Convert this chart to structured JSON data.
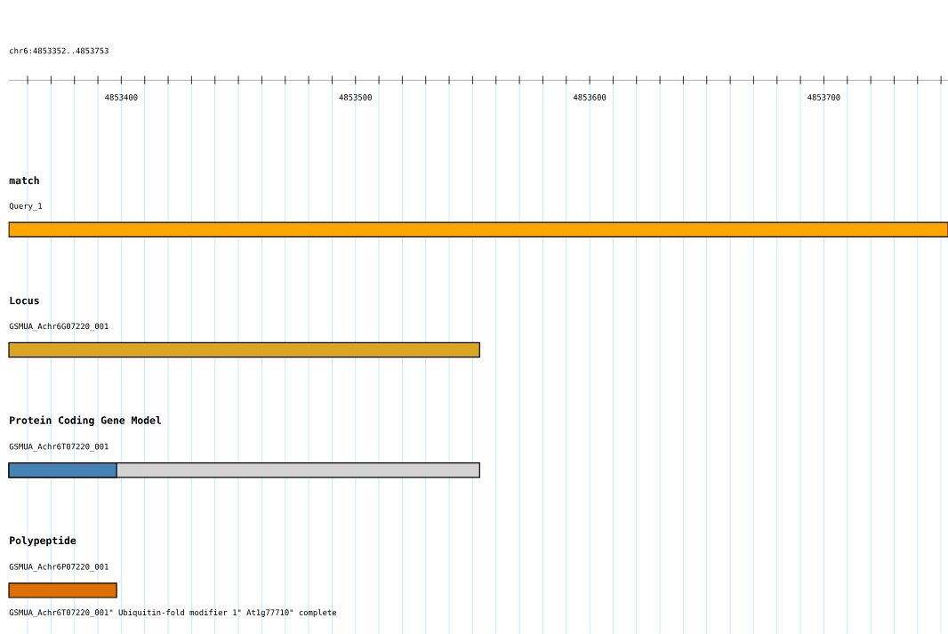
{
  "chart_data": {
    "type": "bar",
    "orientation": "horizontal",
    "title": "chr6:4853352..4853753",
    "categories": [
      "match",
      "Locus",
      "Protein Coding Gene Model",
      "Polypeptide"
    ],
    "series": [
      {
        "color": "#d3d3d3",
        "values": [
          null,
          null,
          4853553,
          null
        ]
      },
      {
        "colors": [
          "#ffa500",
          "#daa520",
          "#4682b4",
          "#dd7000"
        ],
        "values": [
          4853753,
          4853553,
          4853398,
          4853398
        ]
      }
    ],
    "xlim": [
      4853352,
      4853753
    ],
    "xticks": [
      {
        "value": 4853360,
        "label": null
      },
      {
        "value": 4853370,
        "label": null
      },
      {
        "value": 4853380,
        "label": null
      },
      {
        "value": 4853390,
        "label": null
      },
      4853400,
      {
        "value": 4853410,
        "label": null
      },
      {
        "value": 4853420,
        "label": null
      },
      {
        "value": 4853430,
        "label": null
      },
      {
        "value": 4853440,
        "label": null
      },
      {
        "value": 4853450,
        "label": null
      },
      {
        "value": 4853460,
        "label": null
      },
      {
        "value": 4853470,
        "label": null
      },
      {
        "value": 4853480,
        "label": null
      },
      {
        "value": 4853490,
        "label": null
      },
      4853500,
      {
        "value": 4853510,
        "label": null
      },
      {
        "value": 4853520,
        "label": null
      },
      {
        "value": 4853530,
        "label": null
      },
      {
        "value": 4853540,
        "label": null
      },
      {
        "value": 4853550,
        "label": null
      },
      {
        "value": 4853560,
        "label": null
      },
      {
        "value": 4853570,
        "label": null
      },
      {
        "value": 4853580,
        "label": null
      },
      {
        "value": 4853590,
        "label": null
      },
      4853600,
      {
        "value": 4853610,
        "label": null
      },
      {
        "value": 4853620,
        "label": null
      },
      {
        "value": 4853630,
        "label": null
      },
      {
        "value": 4853640,
        "label": null
      },
      {
        "value": 4853650,
        "label": null
      },
      {
        "value": 4853660,
        "label": null
      },
      {
        "value": 4853670,
        "label": null
      },
      {
        "value": 4853680,
        "label": null
      },
      {
        "value": 4853690,
        "label": null
      },
      4853700,
      {
        "value": 4853710,
        "label": null
      },
      {
        "value": 4853720,
        "label": null
      },
      {
        "value": 4853730,
        "label": null
      },
      {
        "value": 4853740,
        "label": null
      },
      {
        "value": 4853750,
        "label": null
      }
    ],
    "grid": "x",
    "annotations": [
      "Query_1",
      "GSMUA_Achr6G07220_001",
      "GSMUA_Achr6T07220_001",
      "GSMUA_Achr6P07220_001",
      "GSMUA_Achr6T07220_001\" Ubiquitin-fold modifier 1\" At1g77710\" complete"
    ]
  }
}
